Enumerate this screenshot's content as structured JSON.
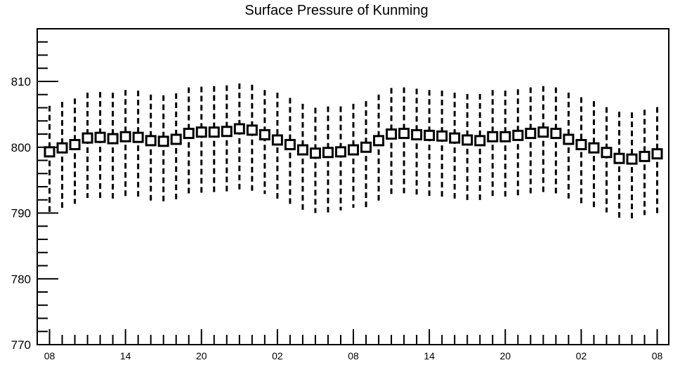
{
  "chart_data": {
    "type": "box",
    "title": "Surface Pressure of Kunming",
    "xlabel": "",
    "ylabel": "",
    "ylim": [
      770,
      818
    ],
    "y_ticks": [
      770,
      780,
      790,
      800,
      810
    ],
    "x_tick_labels": [
      "08",
      "14",
      "20",
      "02",
      "08",
      "14",
      "20",
      "02",
      "08"
    ],
    "grid": false,
    "series": [
      {
        "mean": [
          799.3,
          799.9,
          800.4,
          801.4,
          801.5,
          801.3,
          801.6,
          801.5,
          801.0,
          800.9,
          801.2,
          802.1,
          802.3,
          802.3,
          802.4,
          802.8,
          802.6,
          801.9,
          801.1,
          800.4,
          799.6,
          799.1,
          799.2,
          799.3,
          799.6,
          800.0,
          801.0,
          802.0,
          802.1,
          801.9,
          801.8,
          801.7,
          801.4,
          801.1,
          801.0,
          801.6,
          801.6,
          801.8,
          802.1,
          802.3,
          802.1,
          801.2,
          800.4,
          799.9,
          799.2,
          798.3,
          798.2,
          798.6,
          799.0
        ],
        "whisker_low": [
          790.0,
          790.8,
          791.4,
          792.3,
          792.3,
          792.2,
          792.5,
          792.4,
          791.7,
          791.6,
          792.0,
          792.8,
          793.0,
          793.1,
          793.3,
          793.5,
          793.3,
          792.9,
          792.0,
          791.3,
          790.5,
          790.0,
          790.1,
          790.4,
          790.8,
          790.9,
          791.9,
          792.8,
          793.0,
          792.8,
          792.6,
          792.4,
          792.2,
          791.9,
          791.7,
          792.5,
          792.3,
          792.6,
          792.9,
          793.0,
          792.9,
          792.2,
          791.3,
          790.8,
          790.1,
          789.1,
          789.0,
          789.7,
          789.9
        ],
        "whisker_high": [
          806.3,
          806.9,
          807.4,
          808.3,
          808.4,
          808.3,
          808.7,
          808.6,
          808.0,
          807.9,
          808.2,
          809.1,
          809.2,
          809.3,
          809.4,
          809.7,
          809.5,
          808.7,
          808.3,
          807.5,
          806.6,
          806.0,
          806.2,
          806.2,
          806.6,
          807.0,
          808.0,
          809.0,
          809.1,
          808.9,
          808.7,
          808.6,
          808.3,
          808.1,
          808.1,
          808.7,
          808.6,
          808.8,
          809.1,
          809.3,
          809.1,
          808.3,
          807.6,
          807.0,
          806.1,
          805.4,
          805.3,
          805.7,
          806.1
        ]
      }
    ]
  }
}
